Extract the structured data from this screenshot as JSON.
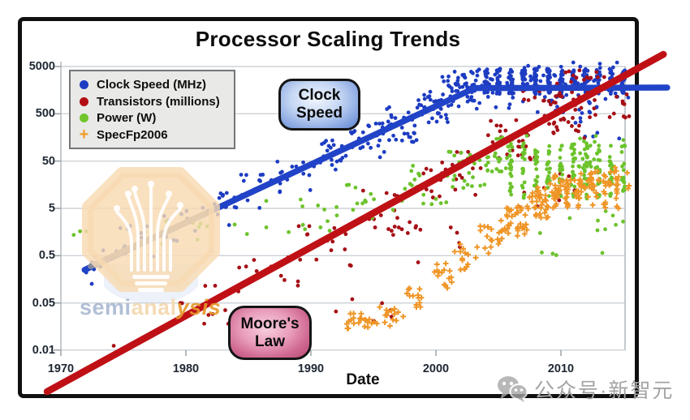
{
  "title": "Processor Scaling Trends",
  "axes": {
    "x_label": "Date",
    "x_tick_years": [
      1970,
      1980,
      1990,
      2000,
      2010
    ],
    "y_tick_labels": [
      "5000",
      "500",
      "50",
      "5",
      "0.5",
      "0.05",
      "0.01"
    ]
  },
  "legend": {
    "items": [
      {
        "label": "Clock Speed (MHz)",
        "color": "#1d3cc2",
        "marker": "dot"
      },
      {
        "label": "Transistors (millions)",
        "color": "#b30d14",
        "marker": "dot"
      },
      {
        "label": "Power (W)",
        "color": "#72c52c",
        "marker": "dot"
      },
      {
        "label": "SpecFp2006",
        "color": "#f09a28",
        "marker": "plus"
      }
    ]
  },
  "annotations": {
    "clock_line1": "Clock",
    "clock_line2": "Speed",
    "moore_line1": "Moore's",
    "moore_line2": "Law"
  },
  "watermarks": {
    "semi_part1": "semi",
    "semi_part2": "anal",
    "semi_part3": "ysis",
    "wechat_text": "公众号·新智元"
  },
  "chart_data": {
    "type": "scatter",
    "title": "Processor Scaling Trends",
    "xlabel": "Date",
    "ylabel": "",
    "y_scale": "log",
    "x_range": [
      1968.5,
      2018.5
    ],
    "x_tick_years": [
      1970,
      1980,
      1990,
      2000,
      2010
    ],
    "y_gridline_values": [
      5000,
      500,
      50,
      5,
      0.5,
      0.05
    ],
    "y_axis_bottom_value": 0.01,
    "grid": "horizontal-only",
    "legend_position": "top-left",
    "series": [
      {
        "name": "Clock Speed (MHz)",
        "color": "#1d3cc2",
        "marker": "dot",
        "clusters": [
          [
            1972.0,
            1974.5,
            0.2,
            1.0,
            9
          ],
          [
            1974.5,
            1978,
            0.45,
            2.2,
            11
          ],
          [
            1978,
            1981,
            1.0,
            5,
            12
          ],
          [
            1981,
            1984,
            2.2,
            11,
            13
          ],
          [
            1984,
            1987,
            5,
            26,
            15
          ],
          [
            1987,
            1990,
            11,
            60,
            17
          ],
          [
            1990,
            1993,
            25,
            140,
            20
          ],
          [
            1993,
            1996,
            60,
            330,
            28
          ],
          [
            1996,
            1998.5,
            120,
            700,
            32
          ],
          [
            1998.5,
            2001,
            300,
            1600,
            34
          ],
          [
            2001,
            2003.5,
            600,
            3200,
            38
          ],
          [
            2000.5,
            2003.5,
            1500,
            4500,
            16
          ],
          [
            2003.5,
            2015.5,
            900,
            3500,
            55
          ],
          [
            2003.85,
            2004.15,
            1300,
            4500,
            24
          ],
          [
            2004.85,
            2005.15,
            1300,
            4500,
            24
          ],
          [
            2005.85,
            2006.15,
            1300,
            4500,
            24
          ],
          [
            2006.85,
            2007.15,
            1300,
            4500,
            24
          ],
          [
            2007.85,
            2008.15,
            1300,
            4500,
            24
          ],
          [
            2008.85,
            2009.15,
            1300,
            4500,
            24
          ],
          [
            2009.85,
            2010.15,
            1300,
            4500,
            24
          ],
          [
            2010.85,
            2011.15,
            1300,
            4500,
            24
          ],
          [
            2011.85,
            2012.15,
            1300,
            4500,
            24
          ],
          [
            2012.85,
            2013.15,
            1300,
            4500,
            24
          ],
          [
            2013.85,
            2014.15,
            1300,
            4500,
            24
          ],
          [
            2014.85,
            2015.15,
            1300,
            4500,
            24
          ],
          [
            2004,
            2015.5,
            450,
            1200,
            22
          ],
          [
            2007,
            2015.3,
            4500,
            6200,
            10
          ],
          [
            2010,
            2015.4,
            120,
            450,
            7
          ],
          [
            1972.2,
            1972.5,
            0.1,
            0.13,
            1
          ]
        ]
      },
      {
        "name": "Transistors (millions)",
        "color": "#a60f16",
        "marker": "dot",
        "clusters": [
          [
            1974.0,
            1974.5,
            0.006,
            0.007,
            1
          ],
          [
            1979,
            1984,
            0.015,
            0.12,
            9
          ],
          [
            1984,
            1989,
            0.08,
            0.5,
            11
          ],
          [
            1989,
            1994,
            0.25,
            2.5,
            15
          ],
          [
            1992,
            1997,
            0.02,
            0.09,
            6
          ],
          [
            1994,
            1999,
            1.5,
            12,
            19
          ],
          [
            1999,
            2004,
            8,
            80,
            25
          ],
          [
            2004,
            2008,
            40,
            400,
            29
          ],
          [
            2008,
            2012,
            150,
            1500,
            32
          ],
          [
            2012,
            2015.5,
            400,
            3000,
            22
          ],
          [
            2006.8,
            2011.5,
            900,
            2600,
            20
          ],
          [
            2010,
            2015.2,
            2600,
            5200,
            9
          ],
          [
            2005,
            2013,
            5,
            40,
            9
          ],
          [
            1996,
            2002,
            0.3,
            2,
            8
          ]
        ]
      },
      {
        "name": "Power (W)",
        "color": "#6cc32b",
        "marker": "dot",
        "clusters": [
          [
            1971,
            1977,
            0.3,
            2,
            7
          ],
          [
            1978,
            1985,
            0.8,
            4,
            9
          ],
          [
            1985,
            1992,
            1.5,
            9,
            12
          ],
          [
            1992,
            1997,
            3,
            18,
            15
          ],
          [
            1997,
            2001,
            6,
            40,
            17
          ],
          [
            2001,
            2004,
            12,
            80,
            22
          ],
          [
            2004,
            2006.3,
            25,
            110,
            24
          ],
          [
            2005.87,
            2006.13,
            8,
            120,
            20
          ],
          [
            2006.87,
            2007.13,
            8,
            120,
            20
          ],
          [
            2007.87,
            2008.13,
            8,
            120,
            20
          ],
          [
            2008.87,
            2009.13,
            8,
            120,
            20
          ],
          [
            2009.87,
            2010.13,
            8,
            120,
            20
          ],
          [
            2010.87,
            2011.13,
            8,
            120,
            20
          ],
          [
            2011.87,
            2012.13,
            8,
            120,
            20
          ],
          [
            2012.87,
            2013.13,
            8,
            120,
            20
          ],
          [
            2013.87,
            2014.13,
            8,
            120,
            20
          ],
          [
            2014.87,
            2015.13,
            8,
            120,
            20
          ],
          [
            2010.8,
            2013.2,
            15,
            130,
            26
          ],
          [
            2004.5,
            2015.2,
            120,
            175,
            10
          ],
          [
            2008,
            2015.5,
            0.5,
            5,
            13
          ]
        ]
      },
      {
        "name": "SpecFp2006",
        "color": "#ef9526",
        "marker": "plus",
        "clusters": [
          [
            1992.8,
            1995.2,
            0.014,
            0.03,
            22
          ],
          [
            1995.2,
            1997.5,
            0.016,
            0.045,
            15
          ],
          [
            1997.5,
            1999.5,
            0.04,
            0.12,
            13
          ],
          [
            1999.5,
            2001.5,
            0.1,
            0.4,
            15
          ],
          [
            2001.5,
            2003.5,
            0.25,
            0.9,
            15
          ],
          [
            2003.5,
            2005.5,
            0.5,
            3,
            20
          ],
          [
            2005.5,
            2007.3,
            1.3,
            6,
            34
          ],
          [
            2007.3,
            2009,
            3,
            14,
            36
          ],
          [
            2009,
            2011,
            6,
            25,
            28
          ],
          [
            2011,
            2013,
            8,
            32,
            24
          ],
          [
            2013,
            2015.5,
            10,
            40,
            18
          ],
          [
            2009.38,
            2009.62,
            5,
            28,
            9
          ],
          [
            2010.38,
            2010.62,
            5,
            28,
            9
          ],
          [
            2011.38,
            2011.62,
            5,
            28,
            9
          ],
          [
            2012.38,
            2012.62,
            5,
            28,
            9
          ],
          [
            2013.38,
            2013.62,
            5,
            28,
            9
          ],
          [
            2014.38,
            2014.62,
            5,
            28,
            9
          ]
        ]
      }
    ],
    "trend_lines": [
      {
        "id": "clock-speed-trend",
        "color": "#2143c7",
        "width": 7.5,
        "alpha": 1,
        "points": [
          [
            1971.9,
            0.25
          ],
          [
            2003.1,
            1750
          ],
          [
            2018.5,
            1790
          ]
        ]
      },
      {
        "id": "early-clock-gray-overlay",
        "color": "#8f9399",
        "width": 7.5,
        "alpha": 0.9,
        "points": [
          [
            1972.4,
            0.3
          ],
          [
            1981.6,
            3.94
          ]
        ]
      },
      {
        "id": "moores-law-trend",
        "color": "#bf1016",
        "width": 8.5,
        "alpha": 1,
        "points": [
          [
            1968.9,
            0.000667
          ],
          [
            2018.2,
            9030
          ]
        ]
      }
    ]
  }
}
